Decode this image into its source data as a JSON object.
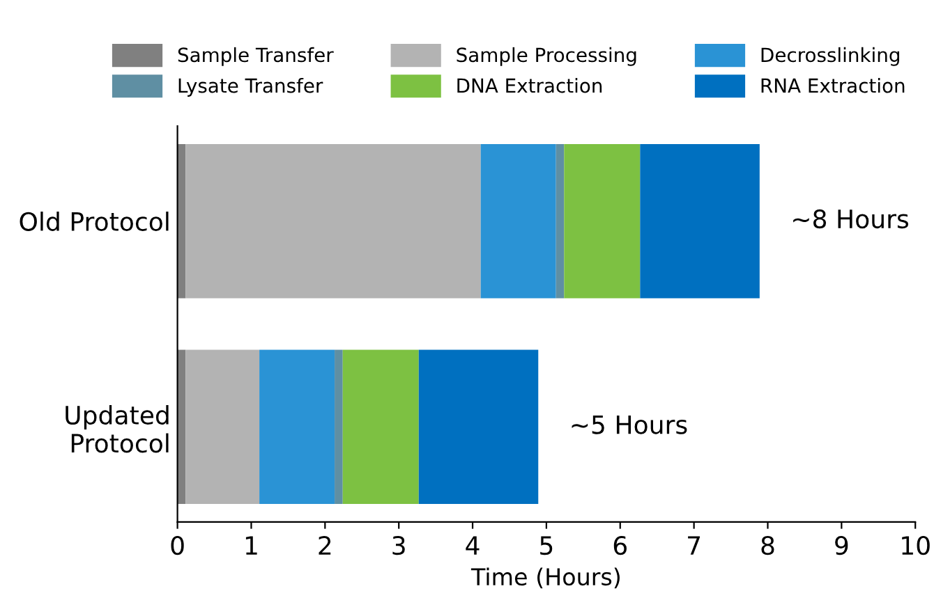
{
  "chart_data": {
    "type": "bar",
    "orientation": "horizontal",
    "stacked": true,
    "categories": [
      "Old Protocol",
      "Updated\nProtocol"
    ],
    "series": [
      {
        "name": "Sample Transfer",
        "color": "#808080",
        "values": [
          0.11,
          0.11
        ]
      },
      {
        "name": "Sample Processing",
        "color": "#b3b3b3",
        "values": [
          4.0,
          1.0
        ]
      },
      {
        "name": "Decrosslinking",
        "color": "#2a93d5",
        "values": [
          1.02,
          1.02
        ]
      },
      {
        "name": "Lysate Transfer",
        "color": "#5f8fa3",
        "values": [
          0.11,
          0.11
        ]
      },
      {
        "name": "DNA Extraction",
        "color": "#7dc142",
        "values": [
          1.03,
          1.03
        ]
      },
      {
        "name": "RNA Extraction",
        "color": "#0070c0",
        "values": [
          1.62,
          1.62
        ]
      }
    ],
    "xlabel": "Time (Hours)",
    "xlim": [
      0,
      10
    ],
    "xticks": [
      0,
      1,
      2,
      3,
      4,
      5,
      6,
      7,
      8,
      9,
      10
    ],
    "annotations": [
      "~8 Hours",
      "~5 Hours"
    ],
    "legend": "top",
    "grid": false
  }
}
